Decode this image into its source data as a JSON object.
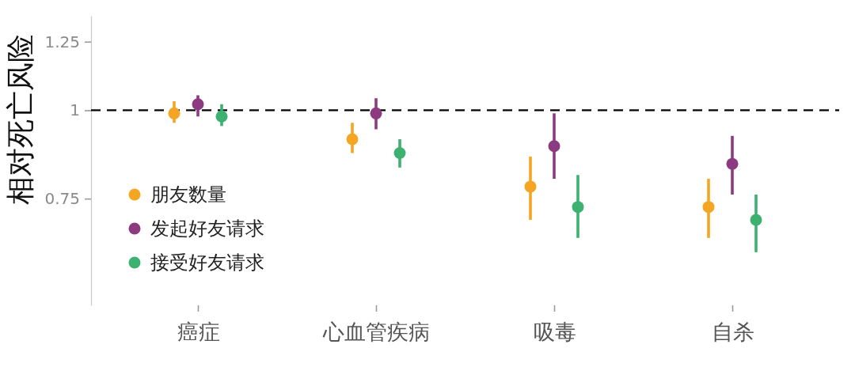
{
  "chart_data": {
    "type": "scatter",
    "ylabel": "相对死亡风险",
    "categories": [
      "癌症",
      "心血管疾病",
      "吸毒",
      "自杀"
    ],
    "series": [
      {
        "name": "朋友数量",
        "color": "#f4a522",
        "values": [
          0.99,
          0.91,
          0.78,
          0.73
        ],
        "errors": [
          [
            0.96,
            1.03
          ],
          [
            0.87,
            0.96
          ],
          [
            0.7,
            0.86
          ],
          [
            0.66,
            0.8
          ]
        ]
      },
      {
        "name": "发起好友请求",
        "color": "#8c3b80",
        "values": [
          1.02,
          0.99,
          0.89,
          0.84
        ],
        "errors": [
          [
            0.98,
            1.05
          ],
          [
            0.94,
            1.04
          ],
          [
            0.8,
            0.99
          ],
          [
            0.76,
            0.92
          ]
        ]
      },
      {
        "name": "接受好友请求",
        "color": "#3db170",
        "values": [
          0.98,
          0.87,
          0.73,
          0.7
        ],
        "errors": [
          [
            0.95,
            1.02
          ],
          [
            0.83,
            0.91
          ],
          [
            0.66,
            0.81
          ],
          [
            0.63,
            0.76
          ]
        ]
      }
    ],
    "log": "y",
    "ylim": [
      0.53,
      1.36
    ],
    "yticks": [
      0.75,
      1,
      1.25
    ],
    "ref_lines": [
      {
        "axis": "y",
        "value": 1,
        "color": "#000000",
        "line_style": "dashed"
      }
    ],
    "legend": "bottom left",
    "marker": "circle"
  }
}
